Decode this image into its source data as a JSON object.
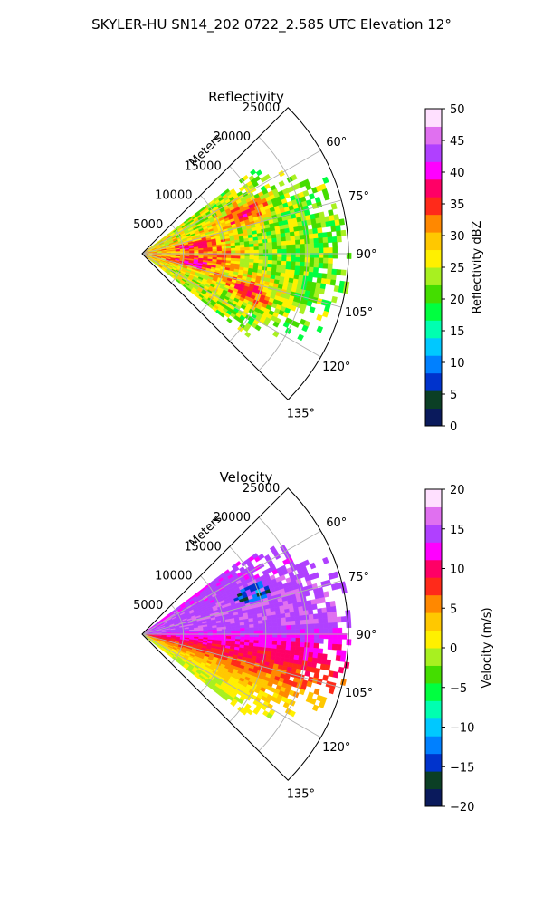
{
  "suptitle": "SKYLER-HU  SN14_202  0722_2.585 UTC Elevation 12°",
  "chart_data": [
    {
      "type": "heatmap",
      "projection": "polar-sector",
      "title": "Reflectivity",
      "radial_axis_label": "Meters",
      "radial_ticks": [
        "5000",
        "10000",
        "15000",
        "20000",
        "25000"
      ],
      "radial_tick_values": [
        5000,
        10000,
        15000,
        20000,
        25000
      ],
      "radial_range": [
        0,
        25000
      ],
      "angle_ticks": [
        "60°",
        "75°",
        "90°",
        "105°",
        "120°",
        "135°"
      ],
      "angle_tick_values": [
        60,
        75,
        90,
        105,
        120,
        135
      ],
      "angle_range": [
        45,
        135
      ],
      "grid": true,
      "colorbar": {
        "label": "Reflectivity dBZ",
        "range": [
          0,
          50
        ],
        "ticks": [
          "0",
          "5",
          "10",
          "15",
          "20",
          "25",
          "30",
          "35",
          "40",
          "45",
          "50"
        ],
        "tick_values": [
          0,
          5,
          10,
          15,
          20,
          25,
          30,
          35,
          40,
          45,
          50
        ],
        "colors": [
          "#0a1a5c",
          "#0b3f25",
          "#0033cc",
          "#0080ff",
          "#00c8ff",
          "#00ffb0",
          "#00ff40",
          "#44dd00",
          "#a8f020",
          "#fff000",
          "#ffc800",
          "#ff8800",
          "#ff2a1a",
          "#ff0066",
          "#ff00ff",
          "#b040ff",
          "#e070f0",
          "#ffe0ff"
        ]
      },
      "fields": {
        "background": 21,
        "spread": 5,
        "cores": [
          {
            "az": 68,
            "r": 13000,
            "value": 34
          },
          {
            "az": 81,
            "r": 6500,
            "value": 33
          },
          {
            "az": 100,
            "r": 6000,
            "value": 33
          },
          {
            "az": 108,
            "r": 13500,
            "value": 34
          },
          {
            "az": 92,
            "r": 9000,
            "value": 29
          }
        ]
      }
    },
    {
      "type": "heatmap",
      "projection": "polar-sector",
      "title": "Velocity",
      "radial_axis_label": "Meters",
      "radial_ticks": [
        "5000",
        "10000",
        "15000",
        "20000",
        "25000"
      ],
      "radial_tick_values": [
        5000,
        10000,
        15000,
        20000,
        25000
      ],
      "radial_range": [
        0,
        25000
      ],
      "angle_ticks": [
        "60°",
        "75°",
        "90°",
        "105°",
        "120°",
        "135°"
      ],
      "angle_tick_values": [
        60,
        75,
        90,
        105,
        120,
        135
      ],
      "angle_range": [
        45,
        135
      ],
      "grid": true,
      "colorbar": {
        "label": "Velocity (m/s)",
        "range": [
          -20,
          20
        ],
        "ticks": [
          "−20",
          "−15",
          "−10",
          "−5",
          "0",
          "5",
          "10",
          "15",
          "20"
        ],
        "tick_values": [
          -20,
          -15,
          -10,
          -5,
          0,
          5,
          10,
          15,
          20
        ],
        "colors": [
          "#0a1a5c",
          "#0b3f25",
          "#0033cc",
          "#0080ff",
          "#00c8ff",
          "#00ffb0",
          "#00ff40",
          "#44dd00",
          "#a8f020",
          "#fff000",
          "#ffc800",
          "#ff8800",
          "#ff2a1a",
          "#ff0066",
          "#ff00ff",
          "#b040ff",
          "#e070f0",
          "#ffe0ff"
        ]
      },
      "fields": {
        "by_azimuth": [
          {
            "az": 55,
            "value": 14
          },
          {
            "az": 70,
            "value": 15
          },
          {
            "az": 85,
            "value": 15
          },
          {
            "az": 92,
            "value": 12
          },
          {
            "az": 100,
            "value": 9
          },
          {
            "az": 112,
            "value": 4
          },
          {
            "az": 122,
            "value": 0
          }
        ],
        "anomaly": {
          "az": 69,
          "r": 14000,
          "value": -14
        }
      }
    }
  ]
}
